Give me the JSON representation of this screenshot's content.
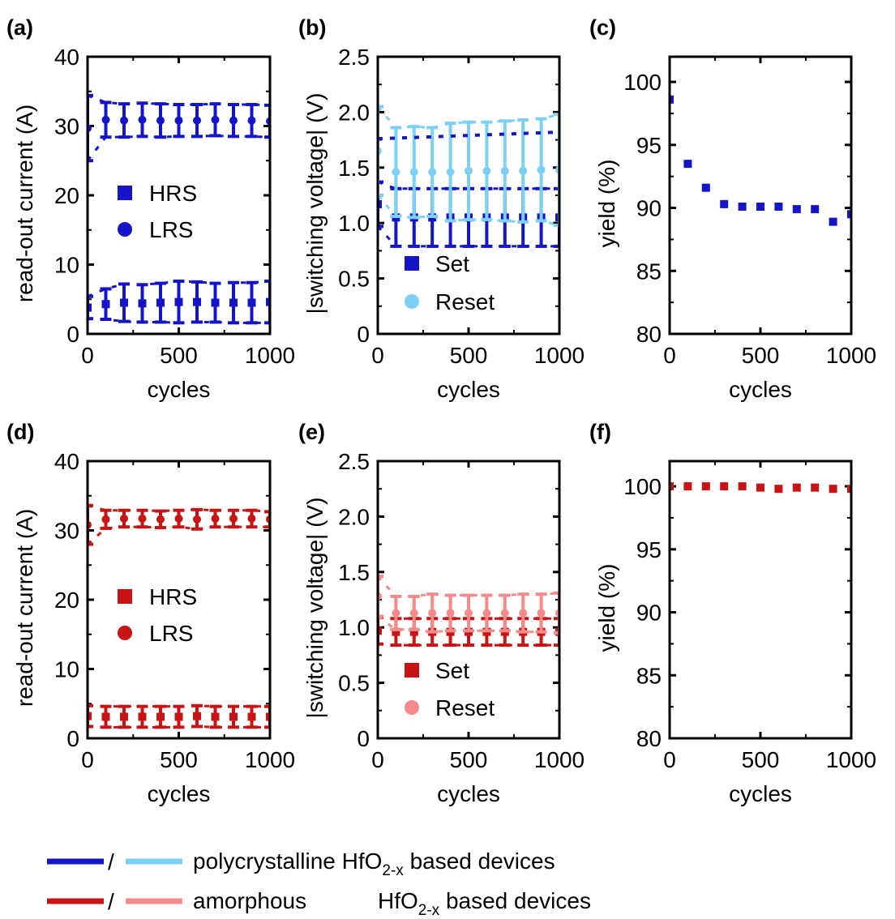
{
  "colors": {
    "poly_dark": "#1414c8",
    "poly_light": "#7dd0f5",
    "amor_dark": "#c81414",
    "amor_light": "#f58a8a",
    "axis": "#000000"
  },
  "xlabel": "cycles",
  "legend": {
    "line1_text": "polycrystalline HfO",
    "line2_text": "amorphous",
    "formula_base": "HfO",
    "formula_sub": "2-x",
    "formula_tail": " based devices",
    "slash": "/"
  },
  "chart_data": [
    {
      "panel": "(a)",
      "type": "scatter",
      "xlabel": "cycles",
      "ylabel": "read-out current (A)",
      "xlim": [
        0,
        1000
      ],
      "ylim": [
        0,
        40
      ],
      "xticks": [
        0,
        500,
        1000
      ],
      "yticks": [
        0,
        10,
        20,
        30,
        40
      ],
      "legend": [
        "HRS",
        "LRS"
      ],
      "series": [
        {
          "name": "HRS",
          "marker": "square",
          "color": "poly_dark",
          "x": [
            0,
            100,
            200,
            300,
            400,
            500,
            600,
            700,
            800,
            900,
            1000
          ],
          "y": [
            3.8,
            4.3,
            4.5,
            4.4,
            4.5,
            4.6,
            4.6,
            4.5,
            4.5,
            4.5,
            4.6
          ],
          "err": [
            1.6,
            2.2,
            2.7,
            2.7,
            2.8,
            3.0,
            2.9,
            2.8,
            2.9,
            2.9,
            3.0
          ]
        },
        {
          "name": "LRS",
          "marker": "circle",
          "color": "poly_dark",
          "x": [
            0,
            100,
            200,
            300,
            400,
            500,
            600,
            700,
            800,
            900,
            1000
          ],
          "y": [
            29.7,
            30.9,
            30.8,
            30.9,
            30.8,
            30.8,
            30.8,
            30.9,
            30.8,
            30.8,
            30.7
          ],
          "err": [
            4.7,
            2.5,
            2.4,
            2.4,
            2.4,
            2.3,
            2.3,
            2.3,
            2.3,
            2.3,
            2.3
          ]
        }
      ]
    },
    {
      "panel": "(b)",
      "type": "scatter",
      "xlabel": "cycles",
      "ylabel": "|switching voltage| (V)",
      "xlim": [
        0,
        1000
      ],
      "ylim": [
        0,
        2.5
      ],
      "xticks": [
        0,
        500,
        1000
      ],
      "yticks": [
        0,
        0.5,
        1.0,
        1.5,
        2.0,
        2.5
      ],
      "legend": [
        "Set",
        "Reset"
      ],
      "series": [
        {
          "name": "Set",
          "marker": "square",
          "color": "poly_dark",
          "x": [
            0,
            100,
            200,
            300,
            400,
            500,
            600,
            700,
            800,
            900,
            1000
          ],
          "y": [
            1.17,
            1.05,
            1.05,
            1.05,
            1.05,
            1.05,
            1.05,
            1.05,
            1.05,
            1.05,
            1.05
          ],
          "err": [
            0.2,
            0.26,
            0.26,
            0.26,
            0.26,
            0.26,
            0.26,
            0.26,
            0.26,
            0.26,
            0.26
          ]
        },
        {
          "name": "Reset",
          "marker": "circle",
          "color": "poly_light",
          "x": [
            0,
            100,
            200,
            300,
            400,
            500,
            600,
            700,
            800,
            900,
            1000
          ],
          "y": [
            1.65,
            1.46,
            1.46,
            1.46,
            1.46,
            1.47,
            1.47,
            1.47,
            1.47,
            1.48,
            1.48
          ],
          "err": [
            0.4,
            0.4,
            0.41,
            0.4,
            0.44,
            0.44,
            0.44,
            0.45,
            0.46,
            0.46,
            0.5
          ]
        },
        {
          "name": "",
          "marker": "none",
          "color": "poly_dark",
          "dashed": true,
          "x": [
            0,
            1000
          ],
          "y": [
            1.76,
            1.82
          ]
        }
      ]
    },
    {
      "panel": "(c)",
      "type": "scatter",
      "xlabel": "cycles",
      "ylabel": "yield (%)",
      "xlim": [
        0,
        1000
      ],
      "ylim": [
        80,
        102
      ],
      "xticks": [
        0,
        500,
        1000
      ],
      "yticks": [
        80,
        85,
        90,
        95,
        100
      ],
      "series": [
        {
          "name": "",
          "marker": "square",
          "color": "poly_dark",
          "x": [
            0,
            100,
            200,
            300,
            400,
            500,
            600,
            700,
            800,
            900,
            1000
          ],
          "y": [
            98.6,
            93.5,
            91.6,
            90.3,
            90.1,
            90.1,
            90.1,
            89.9,
            89.9,
            88.9,
            89.5
          ]
        }
      ]
    },
    {
      "panel": "(d)",
      "type": "scatter",
      "xlabel": "cycles",
      "ylabel": "read-out current (A)",
      "xlim": [
        0,
        1000
      ],
      "ylim": [
        0,
        40
      ],
      "xticks": [
        0,
        500,
        1000
      ],
      "yticks": [
        0,
        10,
        20,
        30,
        40
      ],
      "legend": [
        "HRS",
        "LRS"
      ],
      "series": [
        {
          "name": "HRS",
          "marker": "square",
          "color": "amor_dark",
          "x": [
            0,
            100,
            200,
            300,
            400,
            500,
            600,
            700,
            800,
            900,
            1000
          ],
          "y": [
            3.2,
            3.1,
            3.1,
            3.1,
            3.1,
            3.1,
            3.2,
            3.1,
            3.1,
            3.1,
            3.1
          ],
          "err": [
            1.5,
            1.5,
            1.5,
            1.5,
            1.5,
            1.5,
            1.5,
            1.5,
            1.5,
            1.5,
            1.5
          ]
        },
        {
          "name": "LRS",
          "marker": "circle",
          "color": "amor_dark",
          "x": [
            0,
            100,
            200,
            300,
            400,
            500,
            600,
            700,
            800,
            900,
            1000
          ],
          "y": [
            30.8,
            31.6,
            31.7,
            31.7,
            31.6,
            31.7,
            31.6,
            31.7,
            31.7,
            31.7,
            31.6
          ],
          "err": [
            2.8,
            1.3,
            1.2,
            1.2,
            1.2,
            1.2,
            1.4,
            1.2,
            1.2,
            1.2,
            1.1
          ]
        }
      ]
    },
    {
      "panel": "(e)",
      "type": "scatter",
      "xlabel": "cycles",
      "ylabel": "|switching voltage| (V)",
      "xlim": [
        0,
        1000
      ],
      "ylim": [
        0,
        2.5
      ],
      "xticks": [
        0,
        500,
        1000
      ],
      "yticks": [
        0,
        0.5,
        1.0,
        1.5,
        2.0,
        2.5
      ],
      "legend": [
        "Set",
        "Reset"
      ],
      "series": [
        {
          "name": "Set",
          "marker": "square",
          "color": "amor_dark",
          "x": [
            0,
            100,
            200,
            300,
            400,
            500,
            600,
            700,
            800,
            900,
            1000
          ],
          "y": [
            0.97,
            0.96,
            0.96,
            0.96,
            0.96,
            0.96,
            0.96,
            0.96,
            0.96,
            0.96,
            0.96
          ],
          "err": [
            0.12,
            0.12,
            0.12,
            0.12,
            0.12,
            0.12,
            0.12,
            0.12,
            0.12,
            0.12,
            0.12
          ]
        },
        {
          "name": "Reset",
          "marker": "circle",
          "color": "amor_light",
          "x": [
            0,
            100,
            200,
            300,
            400,
            500,
            600,
            700,
            800,
            900,
            1000
          ],
          "y": [
            1.28,
            1.13,
            1.13,
            1.13,
            1.13,
            1.13,
            1.13,
            1.13,
            1.13,
            1.13,
            1.13
          ],
          "err": [
            0.18,
            0.15,
            0.15,
            0.17,
            0.16,
            0.16,
            0.16,
            0.16,
            0.17,
            0.17,
            0.18
          ]
        }
      ]
    },
    {
      "panel": "(f)",
      "type": "scatter",
      "xlabel": "cycles",
      "ylabel": "yield (%)",
      "xlim": [
        0,
        1000
      ],
      "ylim": [
        80,
        102
      ],
      "xticks": [
        0,
        500,
        1000
      ],
      "yticks": [
        80,
        85,
        90,
        95,
        100
      ],
      "series": [
        {
          "name": "",
          "marker": "square",
          "color": "amor_dark",
          "x": [
            0,
            100,
            200,
            300,
            400,
            500,
            600,
            700,
            800,
            900,
            1000
          ],
          "y": [
            100,
            100,
            100,
            100,
            100,
            99.9,
            99.8,
            99.9,
            99.9,
            99.8,
            99.8
          ]
        }
      ]
    }
  ]
}
